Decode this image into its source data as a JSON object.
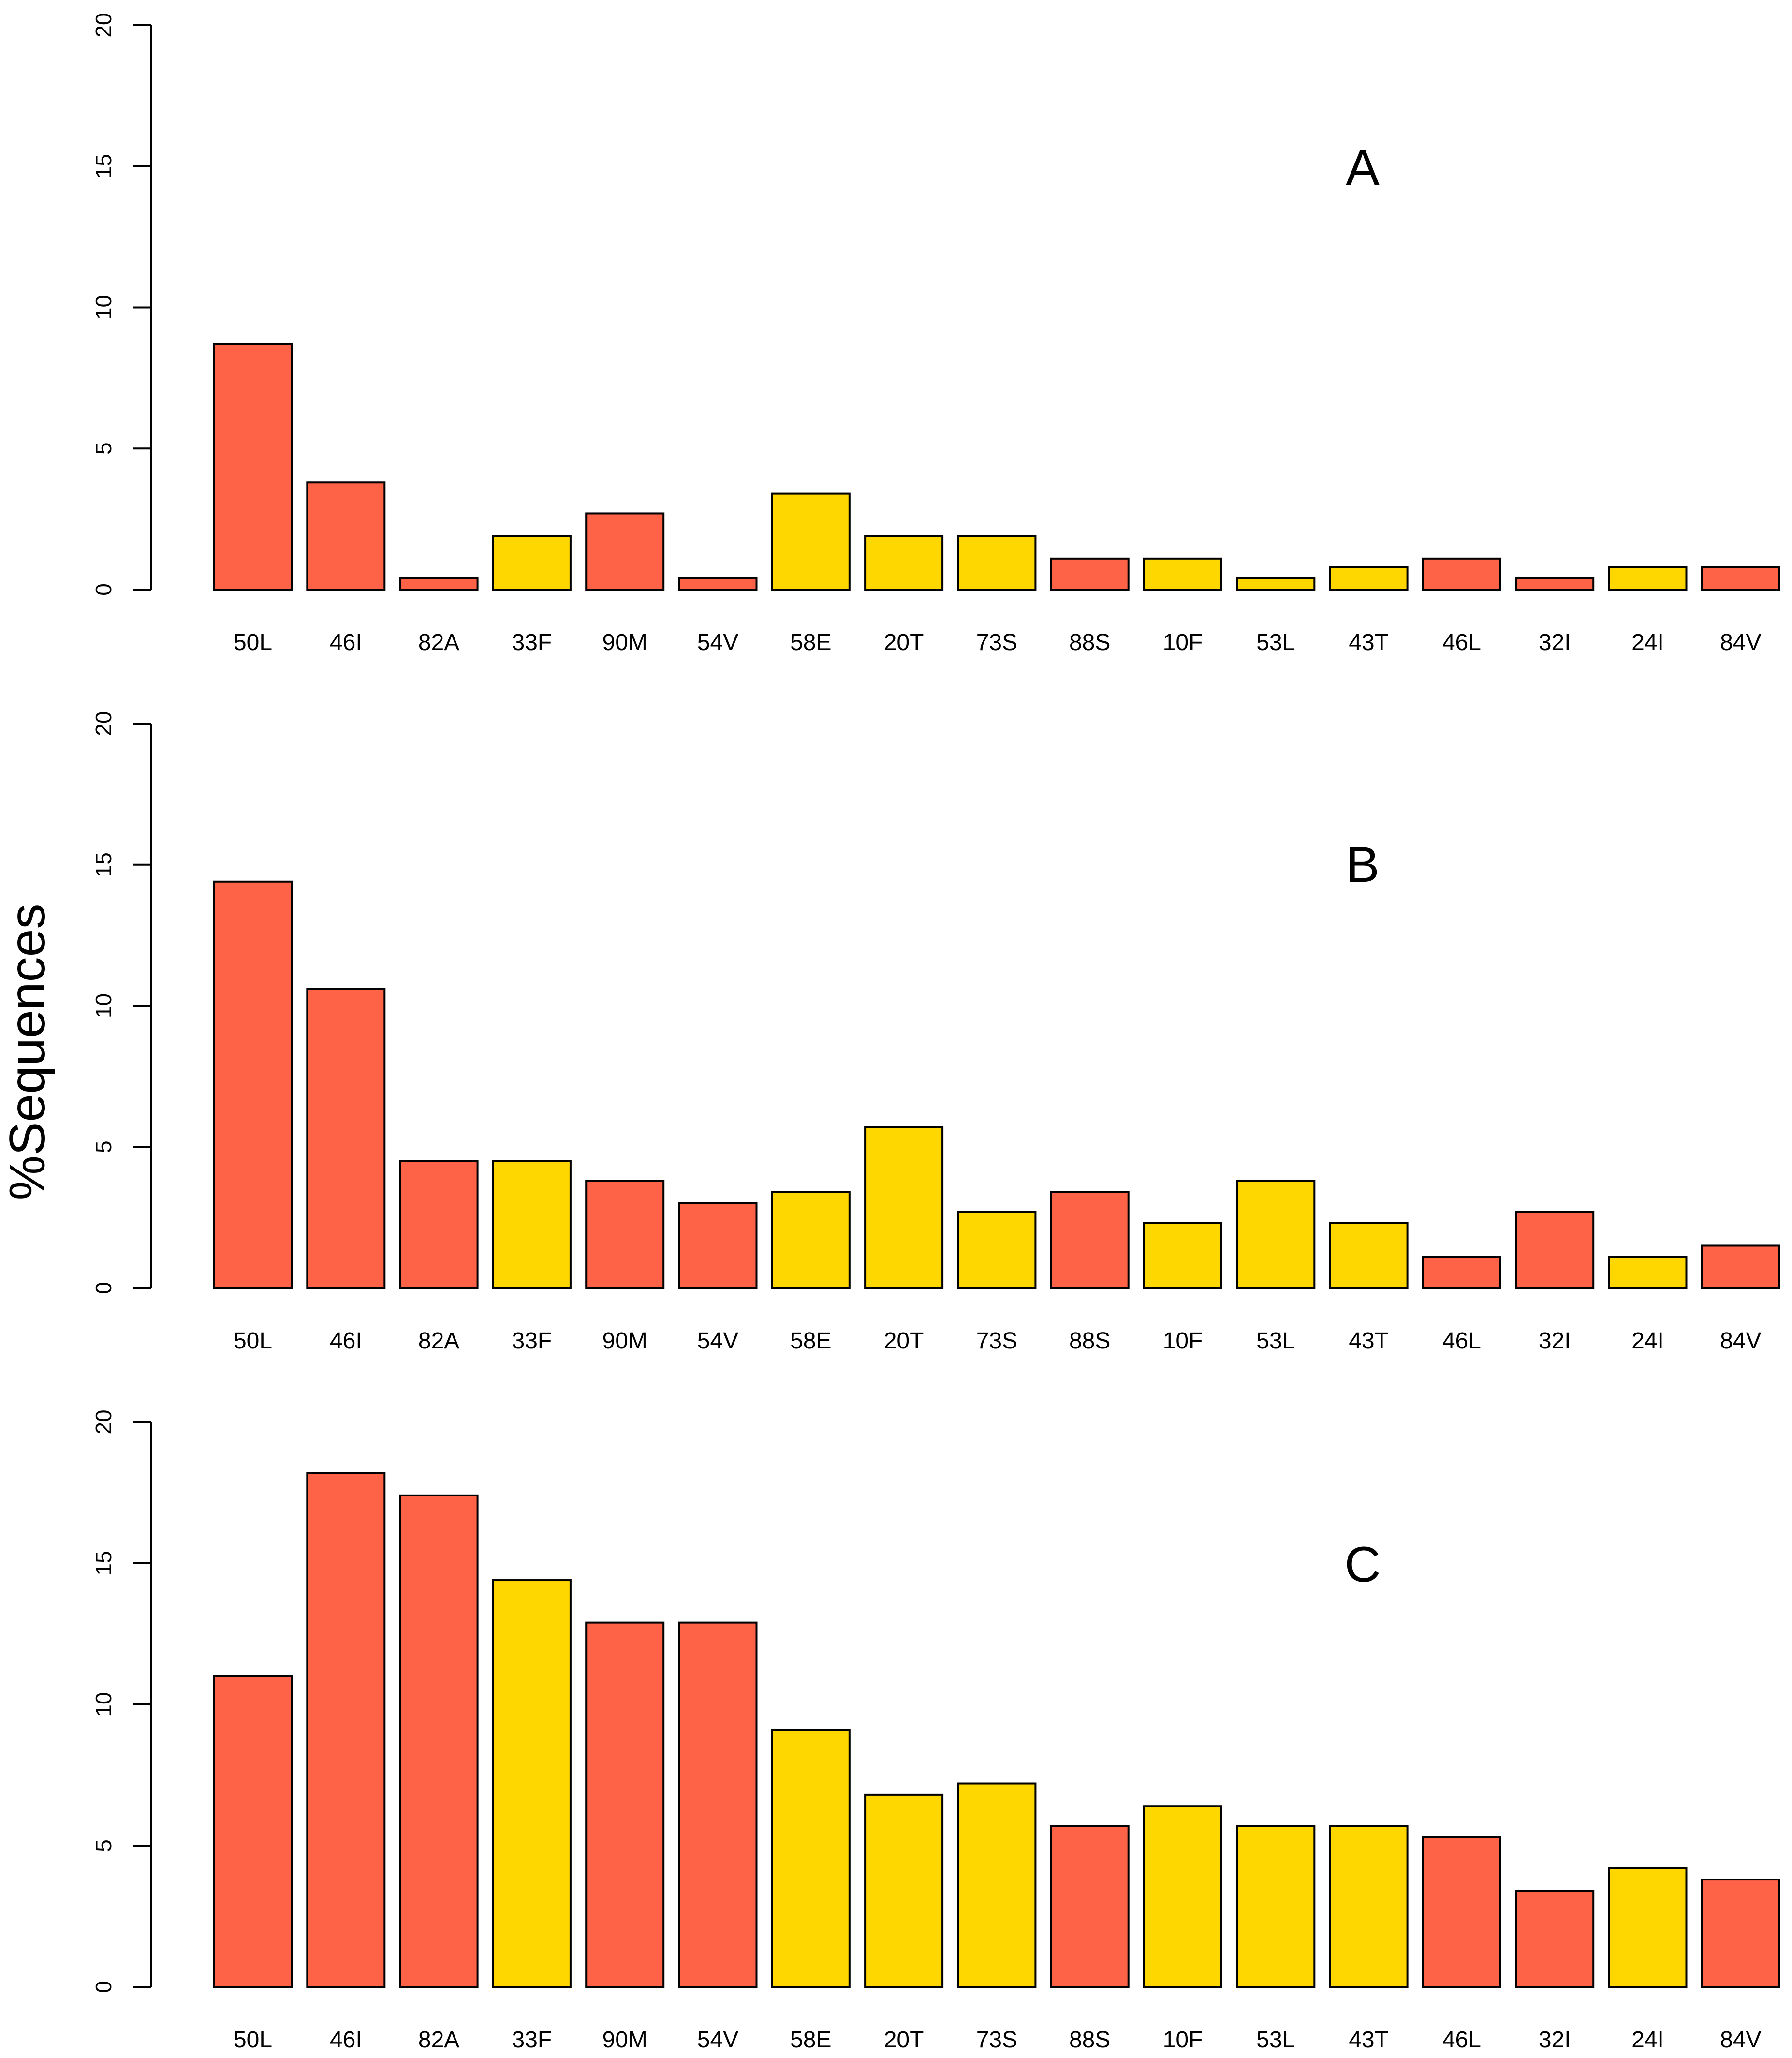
{
  "figure": {
    "ylabel": "%Sequences"
  },
  "colors": {
    "type_major": "#FF6347",
    "type_minor": "#FFD700",
    "outline": "#000000"
  },
  "chart_data": [
    {
      "type": "bar",
      "title": "A",
      "ylim": [
        0,
        20
      ],
      "yticks": [
        0,
        5,
        10,
        15,
        20
      ],
      "categories": [
        "50L",
        "46I",
        "82A",
        "33F",
        "90M",
        "54V",
        "58E",
        "20T",
        "73S",
        "88S",
        "10F",
        "53L",
        "43T",
        "46L",
        "32I",
        "24I",
        "84V"
      ],
      "values": [
        8.7,
        3.8,
        0.4,
        1.9,
        2.7,
        0.4,
        3.4,
        1.9,
        1.9,
        1.1,
        1.1,
        0.4,
        0.8,
        1.1,
        0.4,
        0.8,
        0.8
      ],
      "bar_colors": [
        "#FF6347",
        "#FF6347",
        "#FF6347",
        "#FFD700",
        "#FF6347",
        "#FF6347",
        "#FFD700",
        "#FFD700",
        "#FFD700",
        "#FF6347",
        "#FFD700",
        "#FFD700",
        "#FFD700",
        "#FF6347",
        "#FF6347",
        "#FFD700",
        "#FF6347"
      ]
    },
    {
      "type": "bar",
      "title": "B",
      "ylim": [
        0,
        20
      ],
      "yticks": [
        0,
        5,
        10,
        15,
        20
      ],
      "categories": [
        "50L",
        "46I",
        "82A",
        "33F",
        "90M",
        "54V",
        "58E",
        "20T",
        "73S",
        "88S",
        "10F",
        "53L",
        "43T",
        "46L",
        "32I",
        "24I",
        "84V"
      ],
      "values": [
        14.4,
        10.6,
        4.5,
        4.5,
        3.8,
        3.0,
        3.4,
        5.7,
        2.7,
        3.4,
        2.3,
        3.8,
        2.3,
        1.1,
        2.7,
        1.1,
        1.5
      ],
      "bar_colors": [
        "#FF6347",
        "#FF6347",
        "#FF6347",
        "#FFD700",
        "#FF6347",
        "#FF6347",
        "#FFD700",
        "#FFD700",
        "#FFD700",
        "#FF6347",
        "#FFD700",
        "#FFD700",
        "#FFD700",
        "#FF6347",
        "#FF6347",
        "#FFD700",
        "#FF6347"
      ]
    },
    {
      "type": "bar",
      "title": "C",
      "ylim": [
        0,
        20
      ],
      "yticks": [
        0,
        5,
        10,
        15,
        20
      ],
      "categories": [
        "50L",
        "46I",
        "82A",
        "33F",
        "90M",
        "54V",
        "58E",
        "20T",
        "73S",
        "88S",
        "10F",
        "53L",
        "43T",
        "46L",
        "32I",
        "24I",
        "84V"
      ],
      "values": [
        11.0,
        18.2,
        17.4,
        14.4,
        12.9,
        12.9,
        9.1,
        6.8,
        7.2,
        5.7,
        6.4,
        5.7,
        5.7,
        5.3,
        3.4,
        4.2,
        3.8
      ],
      "bar_colors": [
        "#FF6347",
        "#FF6347",
        "#FF6347",
        "#FFD700",
        "#FF6347",
        "#FF6347",
        "#FFD700",
        "#FFD700",
        "#FFD700",
        "#FF6347",
        "#FFD700",
        "#FFD700",
        "#FFD700",
        "#FF6347",
        "#FF6347",
        "#FFD700",
        "#FF6347"
      ]
    }
  ]
}
